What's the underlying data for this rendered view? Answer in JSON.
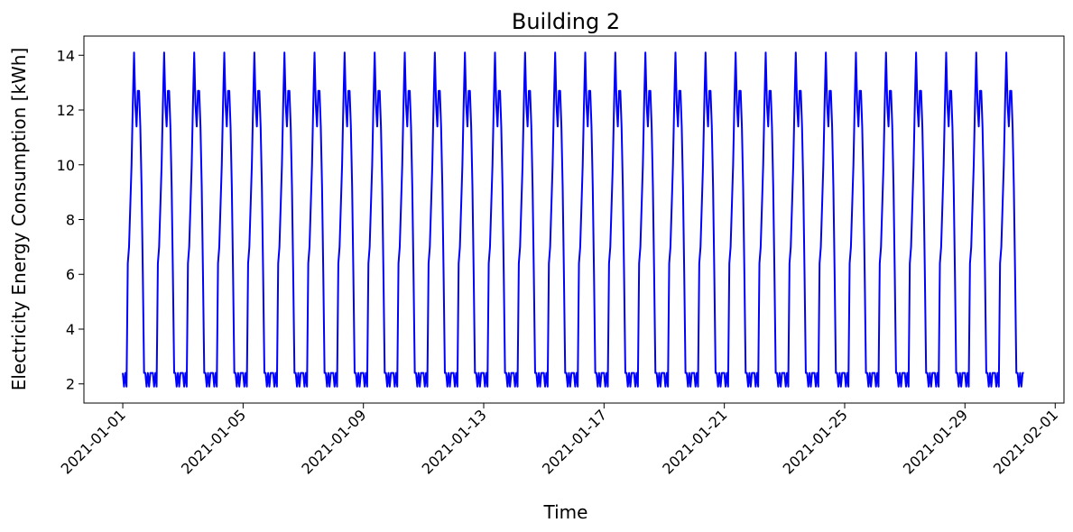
{
  "chart_data": {
    "type": "line",
    "title": "Building 2",
    "xlabel": "Time",
    "ylabel": "Electricity Energy Consumption [kWh]",
    "x_start": "2021-01-01T00:00",
    "x_end": "2021-01-30T23:00",
    "xlim": [
      "2020-12-30T17:00",
      "2021-02-01T07:00"
    ],
    "ylim": [
      1.3,
      14.7
    ],
    "x_ticks": [
      "2021-01-01",
      "2021-01-05",
      "2021-01-09",
      "2021-01-13",
      "2021-01-17",
      "2021-01-21",
      "2021-01-25",
      "2021-01-29",
      "2021-02-01"
    ],
    "y_ticks": [
      2,
      4,
      6,
      8,
      10,
      12,
      14
    ],
    "grid": false,
    "legend": "none",
    "series": [
      {
        "color": "#0000ff",
        "daily_hourly_profile": {
          "hours": [
            0,
            1,
            2,
            3,
            4,
            5,
            6,
            7,
            8,
            9,
            10,
            11,
            12,
            13,
            14,
            15,
            16,
            17,
            18,
            19,
            20,
            21,
            22,
            23
          ],
          "values": [
            2.4,
            1.9,
            2.4,
            1.9,
            6.4,
            7.0,
            8.5,
            10.0,
            12.2,
            14.1,
            12.2,
            11.4,
            12.7,
            12.7,
            11.4,
            9.2,
            6.0,
            2.4,
            2.4,
            1.9,
            2.4,
            1.9,
            2.4,
            2.4
          ]
        },
        "repeats_daily": true
      }
    ]
  }
}
